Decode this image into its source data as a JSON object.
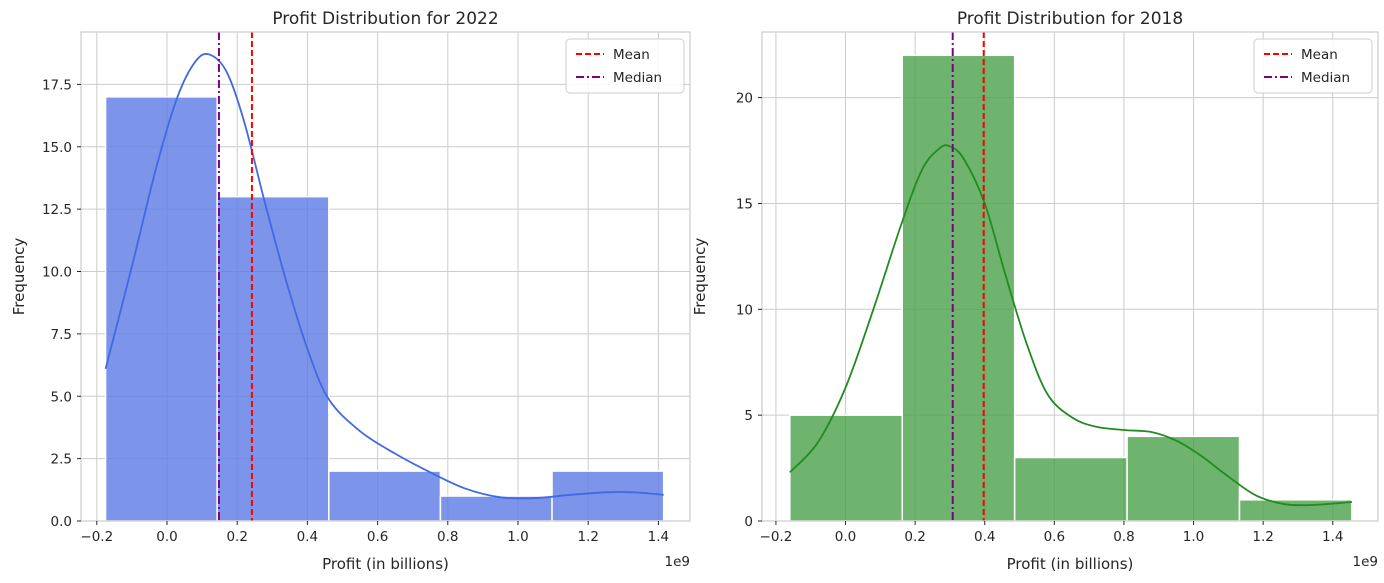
{
  "chart_data": [
    {
      "type": "histogram",
      "title": "Profit Distribution for 2022",
      "xlabel": "Profit (in billions)",
      "ylabel": "Frequency",
      "x_offset_label": "1e9",
      "xlim": [
        -0.245,
        1.49
      ],
      "ylim": [
        0,
        19.6
      ],
      "xticks": [
        -0.2,
        0.0,
        0.2,
        0.4,
        0.6,
        0.8,
        1.0,
        1.2,
        1.4
      ],
      "xtick_labels": [
        "−0.2",
        "0.0",
        "0.2",
        "0.4",
        "0.6",
        "0.8",
        "1.0",
        "1.2",
        "1.4"
      ],
      "yticks": [
        0,
        2.5,
        5.0,
        7.5,
        10.0,
        12.5,
        15.0,
        17.5
      ],
      "ytick_labels": [
        "0.0",
        "2.5",
        "5.0",
        "7.5",
        "10.0",
        "12.5",
        "15.0",
        "17.5"
      ],
      "bins": [
        {
          "x0": -0.175,
          "x1": 0.143,
          "count": 17
        },
        {
          "x0": 0.143,
          "x1": 0.461,
          "count": 13
        },
        {
          "x0": 0.461,
          "x1": 0.779,
          "count": 2
        },
        {
          "x0": 0.779,
          "x1": 1.097,
          "count": 1
        },
        {
          "x0": 1.097,
          "x1": 1.415,
          "count": 2
        }
      ],
      "kde": [
        [
          -0.175,
          6.1
        ],
        [
          -0.1,
          10.2
        ],
        [
          -0.03,
          14.2
        ],
        [
          0.03,
          17.0
        ],
        [
          0.08,
          18.4
        ],
        [
          0.12,
          18.7
        ],
        [
          0.17,
          18.0
        ],
        [
          0.22,
          16.0
        ],
        [
          0.28,
          12.7
        ],
        [
          0.34,
          9.6
        ],
        [
          0.4,
          6.9
        ],
        [
          0.46,
          4.9
        ],
        [
          0.55,
          3.6
        ],
        [
          0.65,
          2.7
        ],
        [
          0.75,
          1.95
        ],
        [
          0.85,
          1.3
        ],
        [
          0.95,
          0.95
        ],
        [
          1.05,
          0.92
        ],
        [
          1.15,
          1.05
        ],
        [
          1.25,
          1.15
        ],
        [
          1.33,
          1.15
        ],
        [
          1.415,
          1.05
        ]
      ],
      "mean": 0.242,
      "median": 0.148,
      "bar_color": "#5b7be5",
      "kde_color": "#4169e1",
      "mean_color": "#ff0000",
      "median_color": "#800080",
      "grid": true,
      "legend_position": "top-right",
      "legend": [
        {
          "label": "Mean",
          "style": "dashed"
        },
        {
          "label": "Median",
          "style": "dash-dot"
        }
      ]
    },
    {
      "type": "histogram",
      "title": "Profit Distribution for 2018",
      "xlabel": "Profit (in billions)",
      "ylabel": "Frequency",
      "x_offset_label": "1e9",
      "xlim": [
        -0.24,
        1.53
      ],
      "ylim": [
        0,
        23.1
      ],
      "xticks": [
        -0.2,
        0.0,
        0.2,
        0.4,
        0.6,
        0.8,
        1.0,
        1.2,
        1.4
      ],
      "xtick_labels": [
        "−0.2",
        "0.0",
        "0.2",
        "0.4",
        "0.6",
        "0.8",
        "1.0",
        "1.2",
        "1.4"
      ],
      "yticks": [
        0,
        5,
        10,
        15,
        20
      ],
      "ytick_labels": [
        "0",
        "5",
        "10",
        "15",
        "20"
      ],
      "bins": [
        {
          "x0": -0.16,
          "x1": 0.163,
          "count": 5
        },
        {
          "x0": 0.163,
          "x1": 0.486,
          "count": 22
        },
        {
          "x0": 0.486,
          "x1": 0.809,
          "count": 3
        },
        {
          "x0": 0.809,
          "x1": 1.132,
          "count": 4
        },
        {
          "x0": 1.132,
          "x1": 1.455,
          "count": 1
        }
      ],
      "kde": [
        [
          -0.16,
          2.3
        ],
        [
          -0.08,
          3.7
        ],
        [
          0.0,
          6.3
        ],
        [
          0.08,
          10.0
        ],
        [
          0.16,
          14.0
        ],
        [
          0.22,
          16.6
        ],
        [
          0.27,
          17.6
        ],
        [
          0.3,
          17.7
        ],
        [
          0.34,
          17.1
        ],
        [
          0.4,
          15.0
        ],
        [
          0.46,
          11.6
        ],
        [
          0.52,
          8.4
        ],
        [
          0.58,
          6.0
        ],
        [
          0.65,
          4.9
        ],
        [
          0.72,
          4.45
        ],
        [
          0.8,
          4.3
        ],
        [
          0.88,
          4.2
        ],
        [
          0.95,
          3.8
        ],
        [
          1.02,
          3.1
        ],
        [
          1.1,
          2.1
        ],
        [
          1.18,
          1.2
        ],
        [
          1.26,
          0.8
        ],
        [
          1.33,
          0.75
        ],
        [
          1.4,
          0.82
        ],
        [
          1.455,
          0.9
        ]
      ],
      "mean": 0.397,
      "median": 0.308,
      "bar_color": "#4aa04a",
      "kde_color": "#228b22",
      "mean_color": "#ff0000",
      "median_color": "#800080",
      "grid": true,
      "legend_position": "top-right",
      "legend": [
        {
          "label": "Mean",
          "style": "dashed"
        },
        {
          "label": "Median",
          "style": "dash-dot"
        }
      ]
    }
  ]
}
